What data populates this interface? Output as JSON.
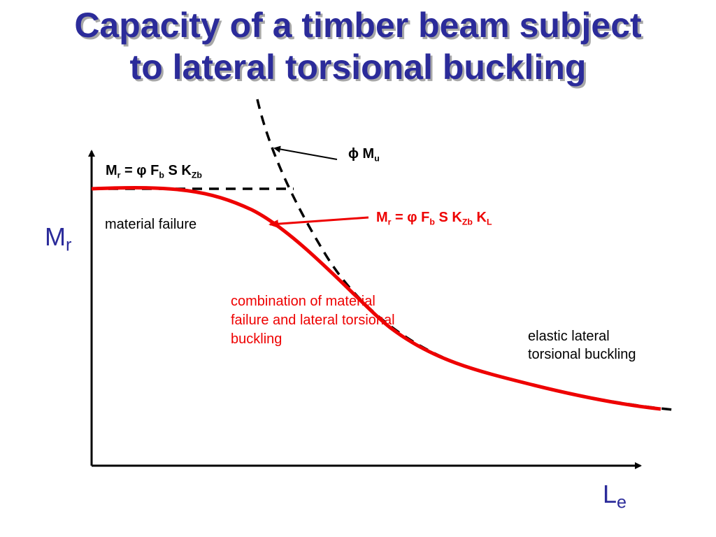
{
  "slide": {
    "title_line1": "Capacity of a timber beam subject",
    "title_line2": "to lateral torsional buckling"
  },
  "axes": {
    "y_main": "M",
    "y_sub": "r",
    "x_main": "L",
    "x_sub": "e"
  },
  "eq_material": {
    "prefix": "M",
    "sub_r": "r",
    "mid": " = φ F",
    "sub_b": "b",
    "tail": " S K",
    "sub_zb": "Zb"
  },
  "eq_reduced": {
    "prefix": "M",
    "sub_r": "r",
    "mid": " = φ F",
    "sub_b": "b",
    "tail": " S K",
    "sub_zb": "Zb",
    "tail2": " K",
    "sub_l": "L"
  },
  "mu_label": {
    "symbol": "ϕ",
    "main": " M",
    "sub": "u"
  },
  "regions": {
    "material_failure": "material failure",
    "combination": "combination of material failure and lateral torsional buckling",
    "elastic_line1": "elastic lateral",
    "elastic_line2": "torsional buckling"
  },
  "colors": {
    "title": "#2b2b9a",
    "capacity_curve": "#ee0000",
    "dashed_curves": "#000000",
    "axes": "#000000"
  }
}
